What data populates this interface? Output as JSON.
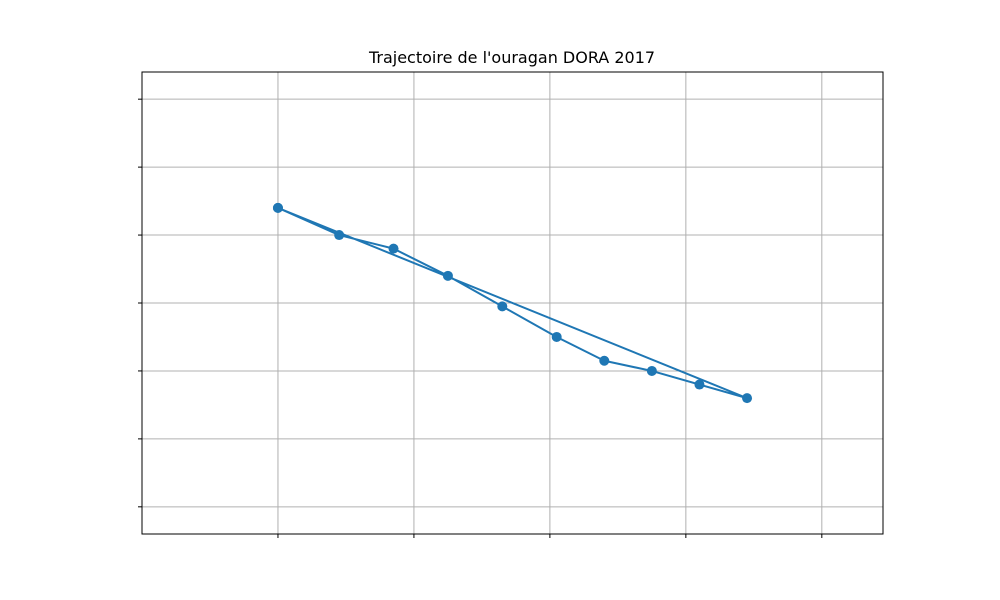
{
  "chart_data": {
    "type": "line",
    "title": "Trajectoire de l'ouragan DORA 2017",
    "xlabel": "",
    "ylabel": "",
    "xlim": [
      -110.0,
      -99.1
    ],
    "ylim": [
      11.4,
      18.2
    ],
    "x_gridlines": [
      -108,
      -106,
      -104,
      -102,
      -100
    ],
    "y_gridlines": [
      11.8,
      12.8,
      13.8,
      14.8,
      15.8,
      16.8,
      17.8
    ],
    "grid": true,
    "legend": "none",
    "series": [
      {
        "x": [
          -108.0,
          -101.1,
          -101.8,
          -102.5,
          -103.2,
          -103.9,
          -104.7,
          -105.5,
          -106.3,
          -107.1,
          -108.0
        ],
        "y": [
          16.2,
          13.4,
          13.6,
          13.8,
          13.95,
          14.3,
          14.75,
          15.2,
          15.6,
          15.8,
          16.2
        ]
      }
    ],
    "colors": {
      "line": "#1f77b4",
      "grid": "#b0b0b0",
      "frame": "#000000"
    }
  }
}
